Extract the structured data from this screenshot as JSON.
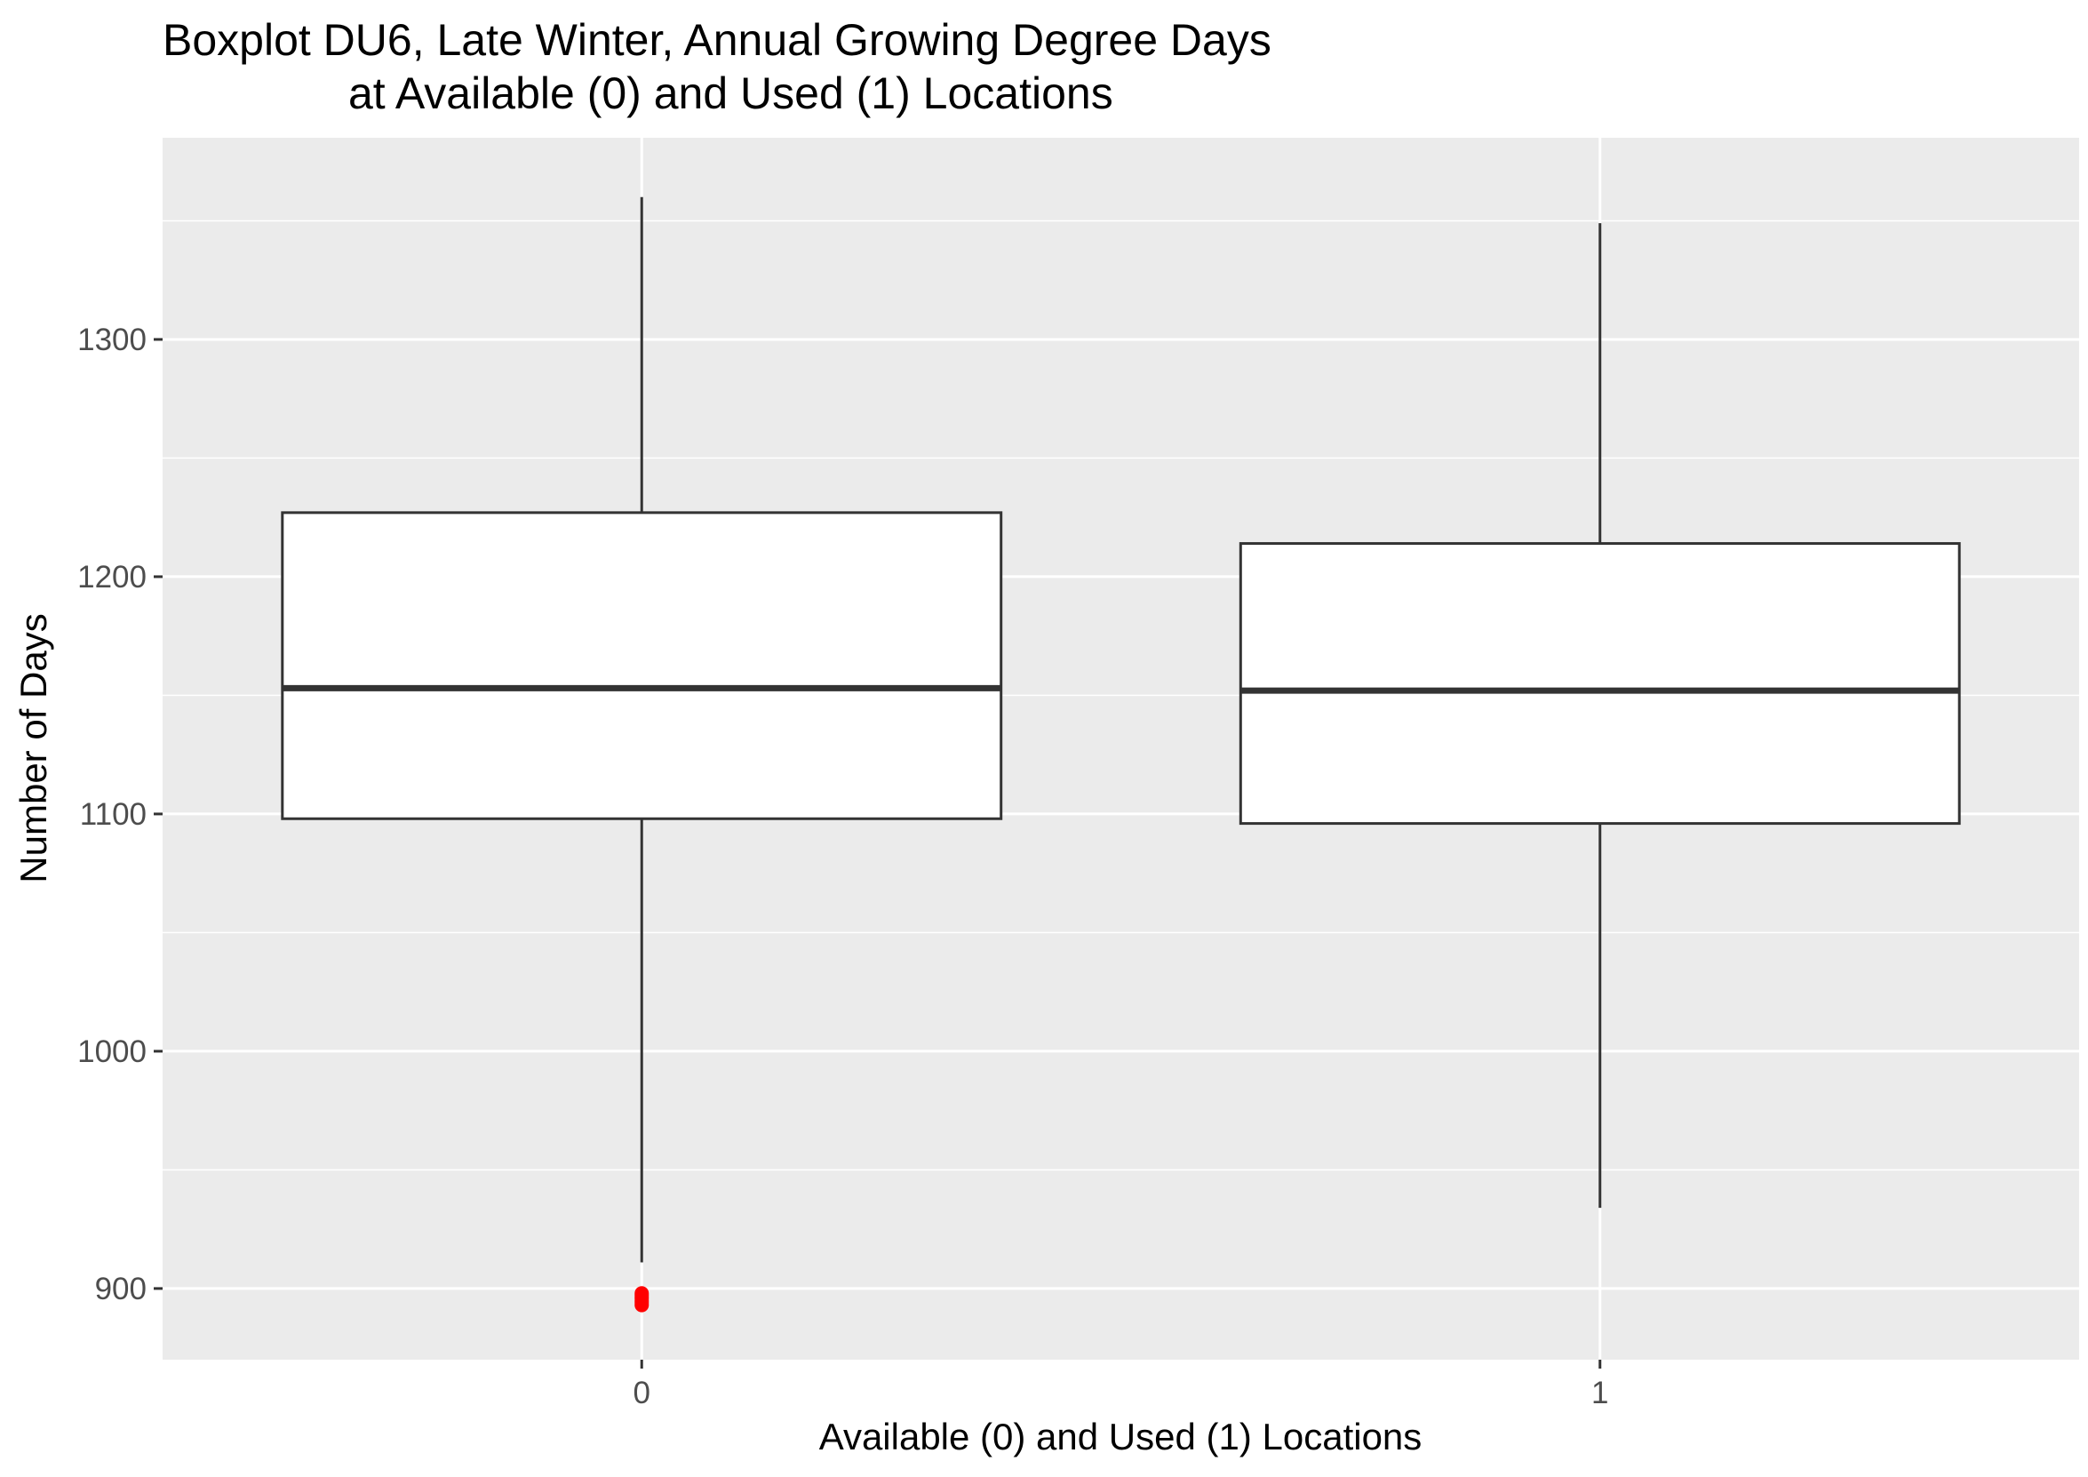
{
  "chart_data": {
    "type": "boxplot",
    "title_lines": [
      "Boxplot DU6, Late Winter, Annual Growing Degree Days",
      "at Available (0) and Used (1) Locations"
    ],
    "xlabel": "Available (0) and Used (1) Locations",
    "ylabel": "Number of Days",
    "categories": [
      "0",
      "1"
    ],
    "y_ticks": [
      900,
      1000,
      1100,
      1200,
      1300
    ],
    "ylim": [
      870,
      1385
    ],
    "grid": true,
    "boxes": [
      {
        "category": "0",
        "whisker_low": 911,
        "q1": 1098,
        "median": 1153,
        "q3": 1227,
        "whisker_high": 1360,
        "outliers": [
          893,
          894,
          895,
          896,
          897,
          898
        ]
      },
      {
        "category": "1",
        "whisker_low": 934,
        "q1": 1096,
        "median": 1152,
        "q3": 1214,
        "whisker_high": 1349,
        "outliers": []
      }
    ],
    "colors": {
      "panel_background": "#ebebeb",
      "grid": "#ffffff",
      "box_fill": "#ffffff",
      "box_line": "#333333",
      "outlier": "#ff0000"
    }
  }
}
